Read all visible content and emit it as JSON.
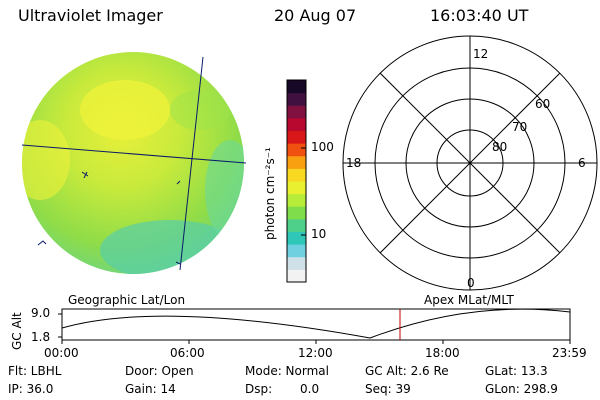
{
  "header": {
    "instrument": "Ultraviolet Imager",
    "date": "20 Aug 07",
    "time": "16:03:40 UT"
  },
  "colorbar": {
    "unit_label": "photon cm⁻²s⁻¹",
    "tick_100": "100",
    "tick_10": "10",
    "colors": [
      "#f2f2f2",
      "#cfe0e8",
      "#6fd0e0",
      "#2fc8b8",
      "#4ed08a",
      "#7fdc4a",
      "#b8ec3a",
      "#e8f030",
      "#f8d820",
      "#f8a010",
      "#f05010",
      "#d81818",
      "#b80830",
      "#801040",
      "#401040",
      "#180828"
    ]
  },
  "polar": {
    "mlt_12": "12",
    "mlt_18": "18",
    "mlt_6": "6",
    "mlt_0": "0",
    "lat_60": "60",
    "lat_70": "70",
    "lat_80": "80"
  },
  "timeline": {
    "left_label": "Geographic Lat/Lon",
    "right_label": "Apex MLat/MLT",
    "axis_title": "GC Alt",
    "ytick_top": "9.0",
    "ytick_bottom": "1.8",
    "xticks": [
      "00:00",
      "06:00",
      "12:00",
      "18:00",
      "23:59"
    ],
    "marker_color": "#c00000"
  },
  "status": {
    "filter": "Flt: LBHL",
    "ip": "IP: 36.0",
    "door": "Door: Open",
    "gain": "Gain: 14",
    "mode": "Mode: Normal",
    "dsp_label": "Dsp:",
    "dsp_value": "0.0",
    "gc_alt": "GC Alt: 2.6 Re",
    "seq": "Seq: 39",
    "glat": "GLat: 13.3",
    "glon": "GLon: 298.9"
  }
}
